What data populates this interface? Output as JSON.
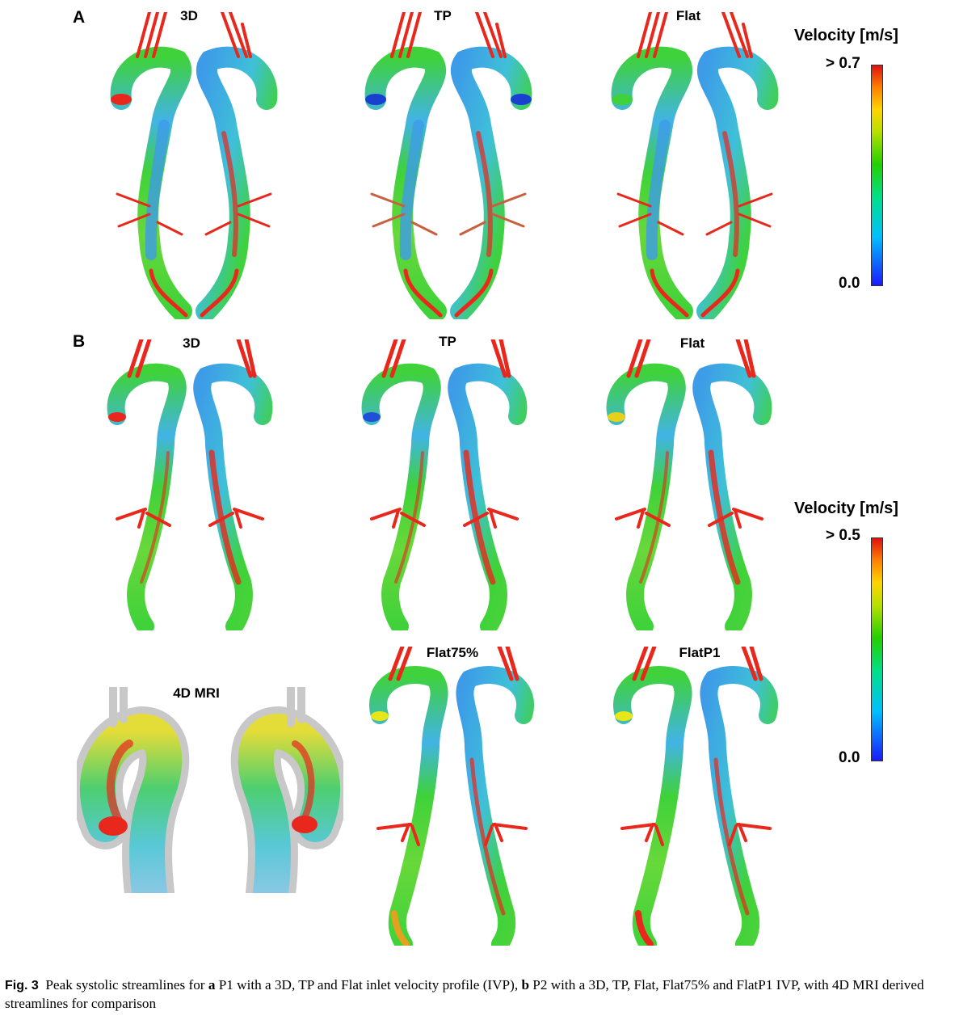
{
  "panels": {
    "a": {
      "letter": "A",
      "titles": [
        "3D",
        "TP",
        "Flat"
      ],
      "legend": {
        "title": "Velocity [m/s]",
        "max": "> 0.7",
        "min": "0.0"
      }
    },
    "b": {
      "letter": "B",
      "titles_row1": [
        "3D",
        "TP",
        "Flat"
      ],
      "titles_row2": [
        "4D MRI",
        "Flat75%",
        "FlatP1"
      ],
      "legend": {
        "title": "Velocity [m/s]",
        "max": "> 0.5",
        "min": "0.0"
      }
    }
  },
  "caption": {
    "label": "Fig. 3",
    "t1": "Peak systolic streamlines for",
    "a": "a",
    "t2": "P1 with a 3D, TP and Flat inlet velocity profile (IVP),",
    "b": "b",
    "t3": "P2 with a 3D, TP, Flat, Flat75% and FlatP1 IVP, with 4D MRI derived streamlines for comparison"
  },
  "colors": {
    "red": "#e8281c",
    "green": "#3fd23a",
    "blue": "#3d9be8",
    "yellow": "#e6e619",
    "gray": "#b9b9b9"
  }
}
